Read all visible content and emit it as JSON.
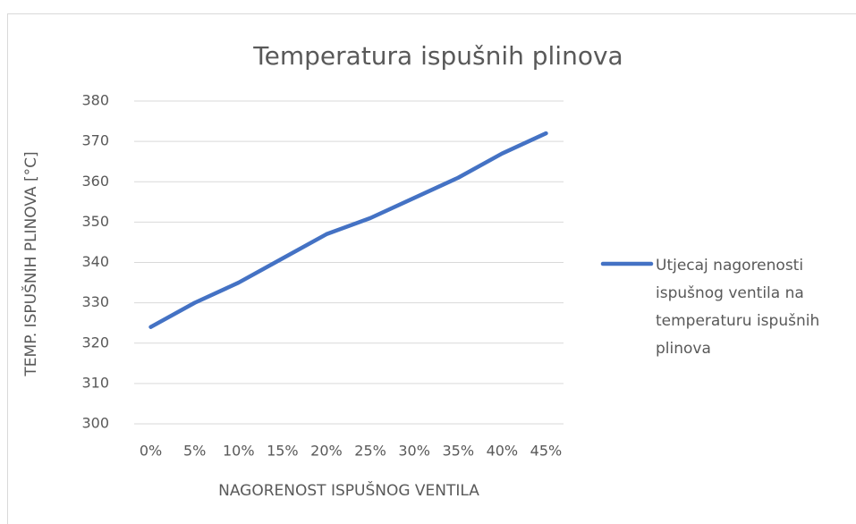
{
  "chart_data": {
    "type": "line",
    "title": "Temperatura ispušnih plinova",
    "x_label": "NAGORENOST ISPUŠNOG VENTILA",
    "y_label": "TEMP. ISPUŠNIH PLINOVA [°C]",
    "categories": [
      "0%",
      "5%",
      "10%",
      "15%",
      "20%",
      "25%",
      "30%",
      "35%",
      "40%",
      "45%"
    ],
    "series": [
      {
        "name": "Utjecaj nagorenosti ispušnog ventila na temperaturu ispušnih plinova",
        "color": "#4472c4",
        "values": [
          324,
          330,
          335,
          341,
          347,
          351,
          356,
          361,
          367,
          372
        ]
      }
    ],
    "ylim": [
      300,
      380
    ],
    "yticks": [
      300,
      310,
      320,
      330,
      340,
      350,
      360,
      370,
      380
    ],
    "grid": true,
    "legend": "right"
  }
}
